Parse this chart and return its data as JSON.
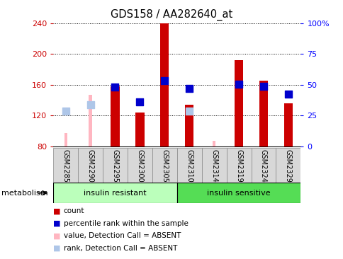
{
  "title": "GDS158 / AA282640_at",
  "samples": [
    "GSM2285",
    "GSM2290",
    "GSM2295",
    "GSM2300",
    "GSM2305",
    "GSM2310",
    "GSM2314",
    "GSM2319",
    "GSM2324",
    "GSM2329"
  ],
  "group1_label": "insulin resistant",
  "group2_label": "insulin sensitive",
  "group1_count": 5,
  "group2_count": 5,
  "metabolism_label": "metabolism",
  "ylim_left": [
    80,
    240
  ],
  "ylim_right": [
    0,
    100
  ],
  "yticks_left": [
    80,
    120,
    160,
    200,
    240
  ],
  "yticks_right": [
    0,
    25,
    50,
    75,
    100
  ],
  "yticklabels_right": [
    "0",
    "25",
    "50",
    "75",
    "100%"
  ],
  "count_bars": [
    null,
    null,
    158,
    124,
    240,
    134,
    null,
    192,
    165,
    136
  ],
  "count_color": "#cc0000",
  "rank_dots": [
    null,
    null,
    157,
    138,
    165,
    155,
    null,
    161,
    158,
    148
  ],
  "rank_dot_color": "#0000cc",
  "absent_value_bars": [
    97,
    147,
    null,
    null,
    null,
    null,
    87,
    null,
    null,
    null
  ],
  "absent_value_color": "#ffb6c1",
  "absent_rank_dots": [
    126,
    134,
    null,
    null,
    null,
    126,
    null,
    null,
    null,
    null
  ],
  "absent_rank_color": "#aec6e8",
  "bar_width": 0.35,
  "absent_bar_width": 0.12,
  "dot_size": 45,
  "group1_bg": "#bbffbb",
  "group2_bg": "#55dd55",
  "sample_box_bg": "#d8d8d8",
  "legend_items": [
    {
      "color": "#cc0000",
      "label": "count"
    },
    {
      "color": "#0000cc",
      "label": "percentile rank within the sample"
    },
    {
      "color": "#ffb6c1",
      "label": "value, Detection Call = ABSENT"
    },
    {
      "color": "#aec6e8",
      "label": "rank, Detection Call = ABSENT"
    }
  ]
}
